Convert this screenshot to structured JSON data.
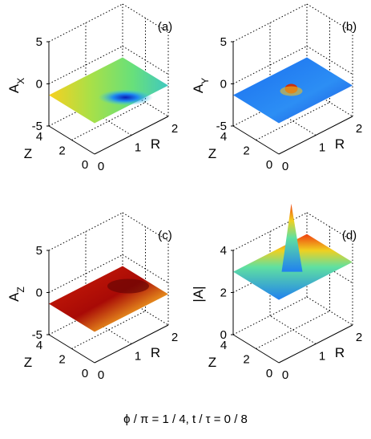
{
  "chart_data": [
    {
      "type": "surface",
      "panel": "(a)",
      "zlabel_base": "A",
      "zlabel_sub": "X",
      "xlabel": "R",
      "ylabel": "Z",
      "xlim": [
        0,
        2
      ],
      "ylim": [
        0,
        4
      ],
      "zlim": [
        -5,
        5
      ],
      "xticks": [
        "0",
        "1",
        "2"
      ],
      "yticks": [
        "0",
        "2",
        "4"
      ],
      "zticks": [
        "5",
        "0",
        "-5"
      ],
      "colormap": "jet",
      "surface_color": "#9be050",
      "peak": {
        "r": 1.1,
        "z": 1.4,
        "value": -0.8
      }
    },
    {
      "type": "surface",
      "panel": "(b)",
      "zlabel_base": "A",
      "zlabel_sub": "Y",
      "xlabel": "R",
      "ylabel": "Z",
      "xlim": [
        0,
        2
      ],
      "ylim": [
        0,
        4
      ],
      "zlim": [
        -5,
        5
      ],
      "xticks": [
        "0",
        "1",
        "2"
      ],
      "yticks": [
        "0",
        "2",
        "4"
      ],
      "zticks": [
        "5",
        "0",
        "-5"
      ],
      "colormap": "jet",
      "surface_color": "#2a7cf2",
      "peak": {
        "r": 1.0,
        "z": 2.0,
        "value": 1.0
      }
    },
    {
      "type": "surface",
      "panel": "(c)",
      "zlabel_base": "A",
      "zlabel_sub": "Z",
      "xlabel": "R",
      "ylabel": "Z",
      "xlim": [
        0,
        2
      ],
      "ylim": [
        0,
        4
      ],
      "zlim": [
        -5,
        5
      ],
      "xticks": [
        "0",
        "1",
        "2"
      ],
      "yticks": [
        "0",
        "2",
        "4"
      ],
      "zticks": [
        "5",
        "0",
        "-5"
      ],
      "colormap": "jet",
      "surface_color": "#c81a08",
      "peak": {
        "r": 2.0,
        "z": 0.0,
        "value": -1.5
      }
    },
    {
      "type": "surface",
      "panel": "(d)",
      "zlabel_base": "|A|",
      "zlabel_sub": "",
      "xlabel": "R",
      "ylabel": "Z",
      "xlim": [
        0,
        2
      ],
      "ylim": [
        0,
        4
      ],
      "zlim": [
        0,
        4
      ],
      "xticks": [
        "0",
        "1",
        "2"
      ],
      "yticks": [
        "0",
        "2",
        "4"
      ],
      "zticks": [
        "4",
        "2",
        "0"
      ],
      "colormap": "jet",
      "surface_color": "#2fa0f4",
      "peak": {
        "r": 1.0,
        "z": 2.0,
        "value": 3.0
      }
    }
  ],
  "caption": "ϕ / π = 1 / 4, t / τ = 0 / 8"
}
